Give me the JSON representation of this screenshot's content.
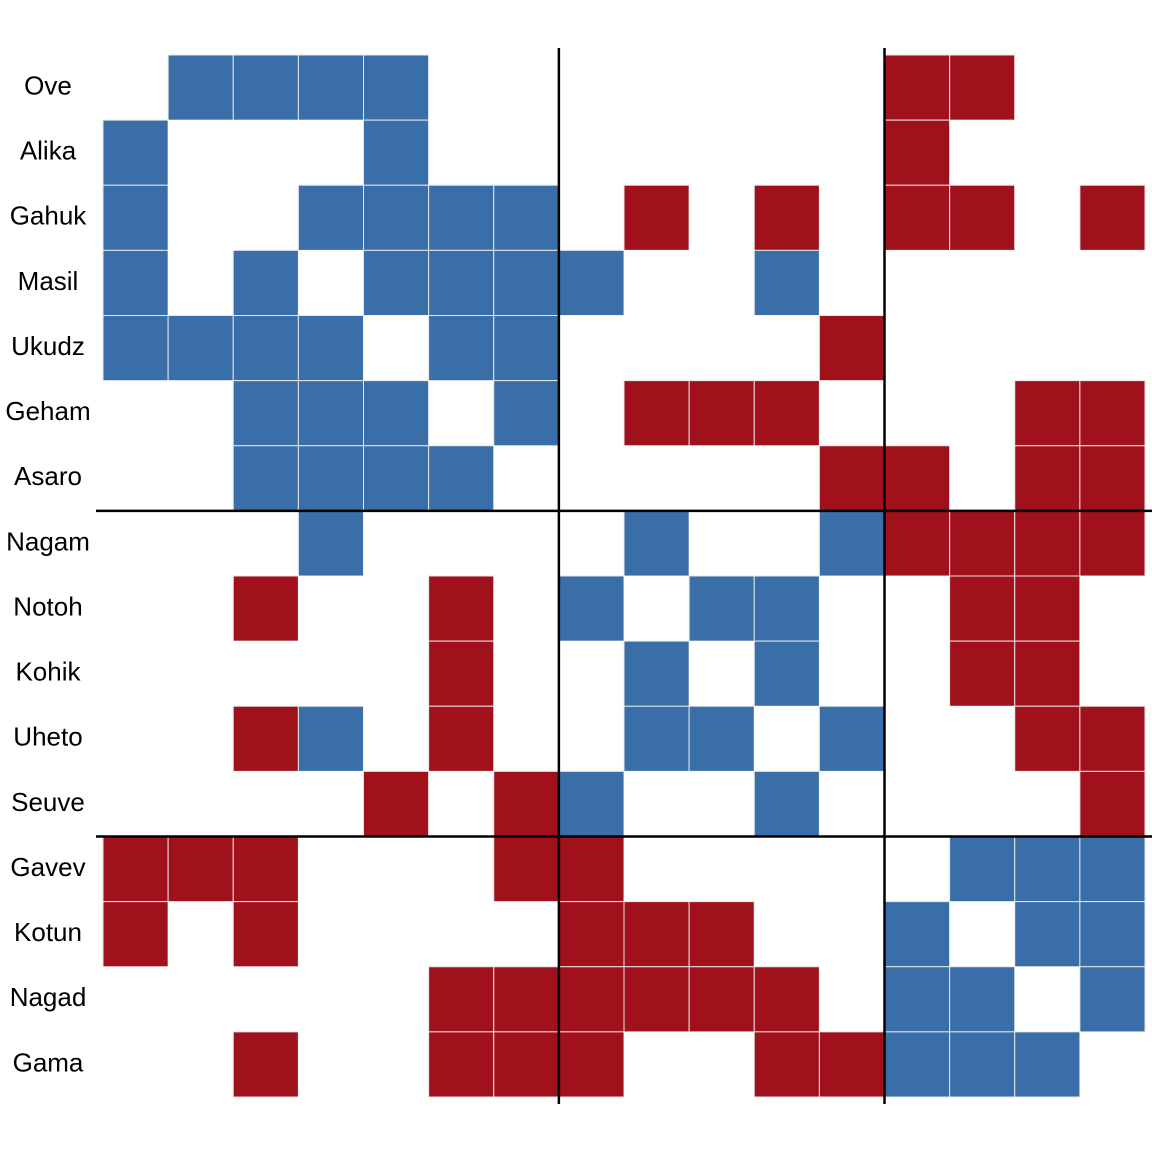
{
  "chart_data": {
    "type": "heatmap",
    "rows": [
      "Ove",
      "Alika",
      "Gahuk",
      "Masil",
      "Ukudz",
      "Geham",
      "Asaro",
      "Nagam",
      "Notoh",
      "Kohik",
      "Uheto",
      "Seuve",
      "Gavev",
      "Kotun",
      "Nagad",
      "Gama"
    ],
    "values": [
      [
        0,
        1,
        1,
        1,
        1,
        0,
        0,
        0,
        0,
        0,
        0,
        0,
        -1,
        -1,
        0,
        0
      ],
      [
        1,
        0,
        0,
        0,
        1,
        0,
        0,
        0,
        0,
        0,
        0,
        0,
        -1,
        0,
        0,
        0
      ],
      [
        1,
        0,
        0,
        1,
        1,
        1,
        1,
        0,
        -1,
        0,
        -1,
        0,
        -1,
        -1,
        0,
        -1
      ],
      [
        1,
        0,
        1,
        0,
        1,
        1,
        1,
        1,
        0,
        0,
        1,
        0,
        0,
        0,
        0,
        0
      ],
      [
        1,
        1,
        1,
        1,
        0,
        1,
        1,
        0,
        0,
        0,
        0,
        -1,
        0,
        0,
        0,
        0
      ],
      [
        0,
        0,
        1,
        1,
        1,
        0,
        1,
        0,
        -1,
        -1,
        -1,
        0,
        0,
        0,
        -1,
        -1
      ],
      [
        0,
        0,
        1,
        1,
        1,
        1,
        0,
        0,
        0,
        0,
        0,
        -1,
        -1,
        0,
        -1,
        -1
      ],
      [
        0,
        0,
        0,
        1,
        0,
        0,
        0,
        0,
        1,
        0,
        0,
        1,
        -1,
        -1,
        -1,
        -1
      ],
      [
        0,
        0,
        -1,
        0,
        0,
        -1,
        0,
        1,
        0,
        1,
        1,
        0,
        0,
        -1,
        -1,
        0
      ],
      [
        0,
        0,
        0,
        0,
        0,
        -1,
        0,
        0,
        1,
        0,
        1,
        0,
        0,
        -1,
        -1,
        0
      ],
      [
        0,
        0,
        -1,
        1,
        0,
        -1,
        0,
        0,
        1,
        1,
        0,
        1,
        0,
        0,
        -1,
        -1
      ],
      [
        0,
        0,
        0,
        0,
        -1,
        0,
        -1,
        1,
        0,
        0,
        1,
        0,
        0,
        0,
        0,
        -1
      ],
      [
        -1,
        -1,
        -1,
        0,
        0,
        0,
        -1,
        -1,
        0,
        0,
        0,
        0,
        0,
        1,
        1,
        1
      ],
      [
        -1,
        0,
        -1,
        0,
        0,
        0,
        0,
        -1,
        -1,
        -1,
        0,
        0,
        1,
        0,
        1,
        1
      ],
      [
        0,
        0,
        0,
        0,
        0,
        -1,
        -1,
        -1,
        -1,
        -1,
        -1,
        0,
        1,
        1,
        0,
        1
      ],
      [
        0,
        0,
        -1,
        0,
        0,
        -1,
        -1,
        -1,
        0,
        0,
        -1,
        -1,
        1,
        1,
        1,
        0
      ]
    ],
    "colors": {
      "positive": "#3a6ea8",
      "negative": "#a0111c",
      "zero": "#ffffff"
    },
    "groups": [
      7,
      5,
      4
    ]
  }
}
